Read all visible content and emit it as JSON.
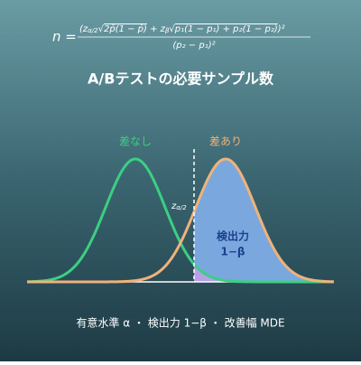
{
  "formula": {
    "lhs": "n =",
    "numerator": [
      "(z",
      "α/2",
      "√",
      "2p̄(1 − p̄)",
      " + z",
      "β",
      "√",
      "p₁(1 − p₁) + p₂(1 − p₂)",
      ")²"
    ],
    "denominator": "(p₂ − p₁)²"
  },
  "title": "A/Bテストの必要サンプル数",
  "labels": {
    "null": "差なし",
    "alt": "差あり",
    "critical": "z",
    "critical_sub": "α/2",
    "power": "検出力",
    "power_value": "1−β"
  },
  "footer": "有意水準 α ・ 検出力 1−β ・ 改善幅 MDE"
}
